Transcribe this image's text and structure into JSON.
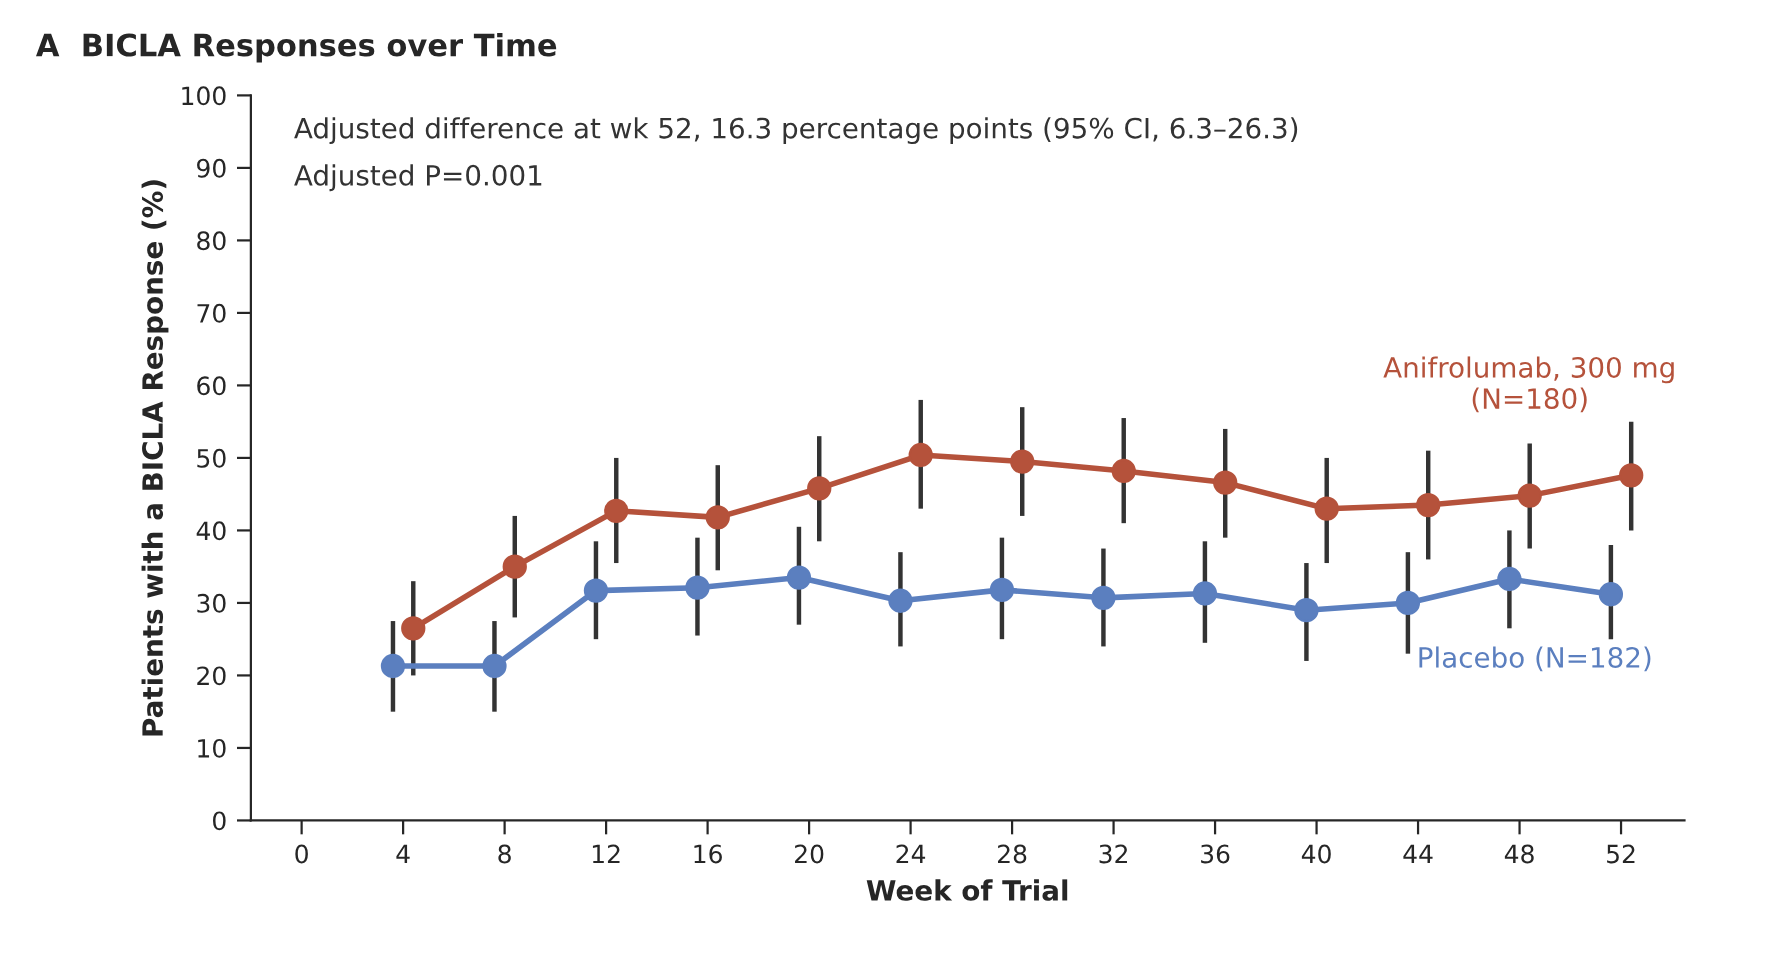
{
  "chart_data": {
    "type": "line",
    "title": "A  BICLA Responses over Time",
    "xlabel": "Week of Trial",
    "ylabel": "Patients with a BICLA Response (%)",
    "annotations": [
      "Adjusted difference at wk 52, 16.3 percentage points (95% CI, 6.3–26.3)",
      "Adjusted P=0.001"
    ],
    "series": [
      {
        "name": "Anifrolumab, 300 mg\n(N=180)",
        "color": "#b5523b",
        "x": [
          4.4,
          8.4,
          12.4,
          16.4,
          20.4,
          24.4,
          28.4,
          32.4,
          36.4,
          40.4,
          44.4,
          48.4,
          52.4
        ],
        "values": [
          26.5,
          35,
          42.7,
          41.8,
          45.8,
          50.4,
          49.5,
          48.2,
          46.6,
          43,
          43.5,
          44.8,
          47.6
        ],
        "errors": [
          [
            20,
            33
          ],
          [
            28,
            42
          ],
          [
            35.5,
            50
          ],
          [
            34.5,
            49
          ],
          [
            38.5,
            53
          ],
          [
            43,
            58
          ],
          [
            42,
            57
          ],
          [
            41,
            55.5
          ],
          [
            39,
            54
          ],
          [
            35.5,
            50
          ],
          [
            36,
            51
          ],
          [
            37.5,
            52
          ],
          [
            40,
            55
          ]
        ]
      },
      {
        "name": "Placebo (N=182)",
        "color": "#5b7fbf",
        "x": [
          3.6,
          7.6,
          11.6,
          15.6,
          19.6,
          23.6,
          27.6,
          31.6,
          35.6,
          39.6,
          43.6,
          47.6,
          51.6
        ],
        "values": [
          21.3,
          21.3,
          31.7,
          32.1,
          33.5,
          30.3,
          31.8,
          30.7,
          31.3,
          29,
          30,
          33.3,
          31.2
        ],
        "errors": [
          [
            15,
            27.5
          ],
          [
            15,
            27.5
          ],
          [
            25,
            38.5
          ],
          [
            25.5,
            39
          ],
          [
            27,
            40.5
          ],
          [
            24,
            37
          ],
          [
            25,
            39
          ],
          [
            24,
            37.5
          ],
          [
            24.5,
            38.5
          ],
          [
            22,
            35.5
          ],
          [
            23,
            37
          ],
          [
            26.5,
            40
          ],
          [
            25,
            38
          ]
        ]
      }
    ],
    "xlim": [
      -2,
      54.5
    ],
    "xticks": [
      0,
      4,
      8,
      12,
      16,
      20,
      24,
      28,
      32,
      36,
      40,
      44,
      48,
      52
    ],
    "ylim": [
      0,
      100
    ],
    "yticks": [
      0,
      10,
      20,
      30,
      40,
      50,
      60,
      70,
      80,
      90,
      100
    ],
    "grid": false,
    "legend": false,
    "marker": "circle",
    "line_style": "solid"
  }
}
